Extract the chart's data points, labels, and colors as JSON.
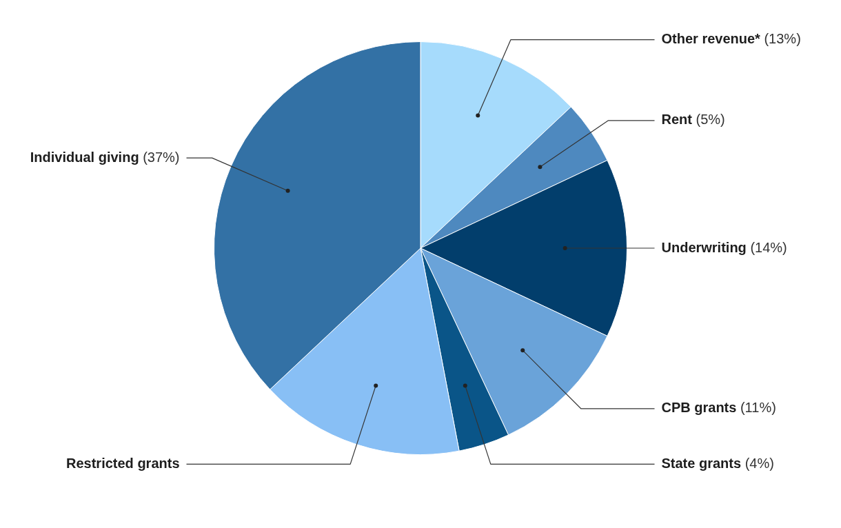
{
  "chart_data": {
    "type": "pie",
    "categories": [
      "Other revenue*",
      "Rent",
      "Underwriting",
      "CPB grants",
      "State grants",
      "Restricted grants",
      "Individual giving"
    ],
    "values": [
      13,
      5,
      14,
      11,
      4,
      16,
      37
    ],
    "colors": [
      "#a6dbfc",
      "#4e89bf",
      "#023e6c",
      "#6aa3d9",
      "#0a5588",
      "#88bff5",
      "#3371a5"
    ],
    "value_labels": [
      "(13%)",
      "(5%)",
      "(14%)",
      "(11%)",
      "(4%)",
      null,
      "(37%)"
    ]
  }
}
